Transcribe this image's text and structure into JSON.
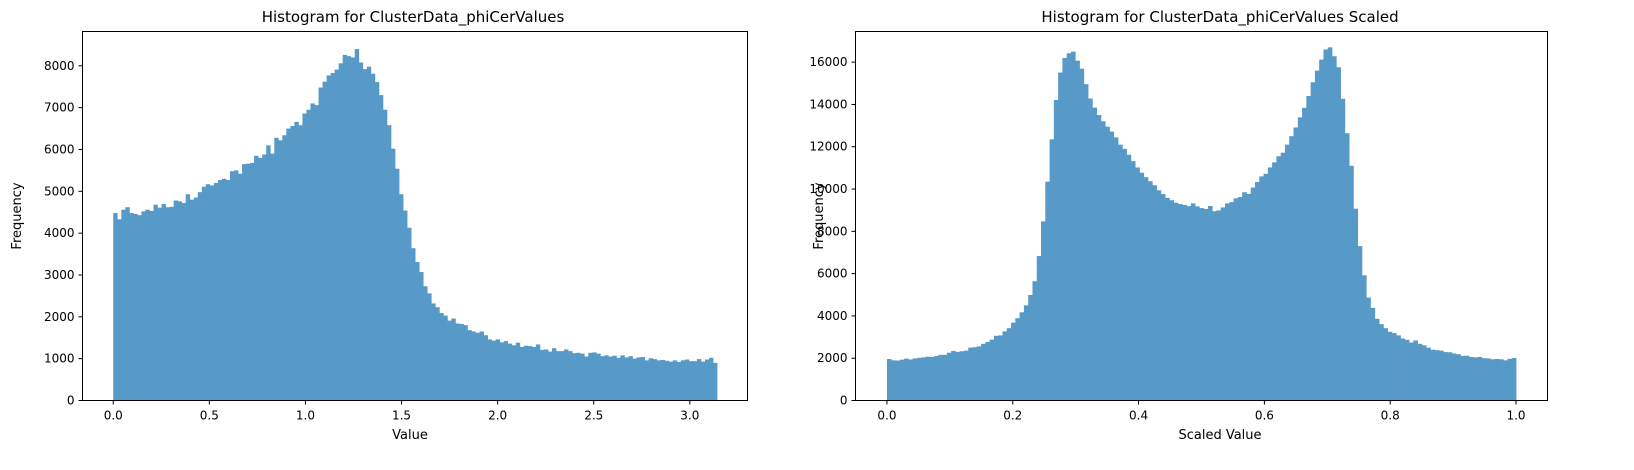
{
  "chart_data": [
    {
      "type": "bar",
      "title": "Histogram for ClusterData_phiCerValues",
      "xlabel": "Value",
      "ylabel": "Frequency",
      "xlim": [
        -0.16,
        3.3
      ],
      "ylim": [
        0,
        8820
      ],
      "xticks": [
        0.0,
        0.5,
        1.0,
        1.5,
        2.0,
        2.5,
        3.0
      ],
      "xtick_labels": [
        "0.0",
        "0.5",
        "1.0",
        "1.5",
        "2.0",
        "2.5",
        "3.0"
      ],
      "yticks": [
        0,
        1000,
        2000,
        3000,
        4000,
        5000,
        6000,
        7000,
        8000
      ],
      "ytick_labels": [
        "0",
        "1000",
        "2000",
        "3000",
        "4000",
        "5000",
        "6000",
        "7000",
        "8000"
      ],
      "bar_color": "#5799c7",
      "bin_start": 0.0,
      "bin_end": 3.1416,
      "values": [
        4480,
        4330,
        4560,
        4620,
        4480,
        4460,
        4430,
        4520,
        4560,
        4530,
        4680,
        4610,
        4700,
        4620,
        4630,
        4780,
        4760,
        4720,
        4930,
        4800,
        4850,
        4980,
        5110,
        5170,
        5140,
        5200,
        5270,
        5300,
        5270,
        5480,
        5500,
        5420,
        5650,
        5660,
        5680,
        5850,
        5800,
        5880,
        6100,
        5900,
        6280,
        6220,
        6340,
        6500,
        6560,
        6660,
        6580,
        6860,
        6950,
        7100,
        7060,
        7480,
        7620,
        7770,
        7830,
        7910,
        8060,
        8260,
        8230,
        8200,
        8400,
        8080,
        7920,
        7980,
        7810,
        7610,
        7300,
        6950,
        6580,
        6020,
        5540,
        4930,
        4540,
        4130,
        3640,
        3310,
        3070,
        2730,
        2560,
        2320,
        2230,
        2090,
        2030,
        1910,
        1960,
        1840,
        1830,
        1800,
        1680,
        1650,
        1620,
        1650,
        1560,
        1460,
        1430,
        1460,
        1390,
        1420,
        1360,
        1320,
        1380,
        1280,
        1310,
        1300,
        1280,
        1340,
        1210,
        1220,
        1170,
        1250,
        1180,
        1180,
        1220,
        1180,
        1130,
        1140,
        1120,
        1050,
        1140,
        1150,
        1120,
        1060,
        1080,
        1050,
        1070,
        1020,
        1080,
        1030,
        1060,
        1000,
        1030,
        1040,
        960,
        1010,
        990,
        960,
        970,
        950,
        930,
        960,
        920,
        960,
        980,
        940,
        940,
        990,
        930,
        980,
        1020,
        900
      ]
    },
    {
      "type": "bar",
      "title": "Histogram for ClusterData_phiCerValues Scaled",
      "xlabel": "Scaled Value",
      "ylabel": "Frequency",
      "xlim": [
        -0.05,
        1.05
      ],
      "ylim": [
        0,
        17450
      ],
      "xticks": [
        0.0,
        0.2,
        0.4,
        0.6,
        0.8,
        1.0
      ],
      "xtick_labels": [
        "0.0",
        "0.2",
        "0.4",
        "0.6",
        "0.8",
        "1.0"
      ],
      "yticks": [
        0,
        2000,
        4000,
        6000,
        8000,
        10000,
        12000,
        14000,
        16000
      ],
      "ytick_labels": [
        "0",
        "2000",
        "4000",
        "6000",
        "8000",
        "10000",
        "12000",
        "14000",
        "16000"
      ],
      "bar_color": "#5799c7",
      "bin_start": 0.0,
      "bin_end": 1.0,
      "values": [
        1960,
        1900,
        1890,
        1930,
        1980,
        1940,
        1990,
        2020,
        2040,
        2070,
        2060,
        2100,
        2160,
        2160,
        2260,
        2340,
        2300,
        2330,
        2360,
        2500,
        2520,
        2560,
        2680,
        2770,
        2880,
        3060,
        3080,
        3270,
        3420,
        3680,
        3890,
        4170,
        4500,
        4990,
        5640,
        6830,
        8470,
        10350,
        12350,
        14210,
        15510,
        16200,
        16420,
        16500,
        16070,
        15690,
        14960,
        14280,
        13850,
        13500,
        13200,
        12950,
        12720,
        12440,
        12100,
        11900,
        11620,
        11320,
        11020,
        10770,
        10560,
        10370,
        10180,
        9940,
        9760,
        9580,
        9470,
        9350,
        9290,
        9250,
        9190,
        9320,
        9180,
        9100,
        9060,
        9200,
        8950,
        8990,
        9130,
        9320,
        9380,
        9560,
        9620,
        9850,
        9770,
        10070,
        10330,
        10600,
        10720,
        11020,
        11260,
        11550,
        11720,
        12100,
        12500,
        12910,
        13390,
        13840,
        14400,
        15050,
        15600,
        16120,
        16600,
        16700,
        16280,
        15760,
        14270,
        12640,
        11100,
        9070,
        7300,
        5920,
        4870,
        4380,
        3860,
        3610,
        3420,
        3250,
        3190,
        3080,
        2930,
        2870,
        2740,
        2840,
        2680,
        2610,
        2500,
        2400,
        2380,
        2360,
        2290,
        2280,
        2220,
        2190,
        2110,
        2120,
        2060,
        2040,
        2060,
        2000,
        1990,
        1950,
        1960,
        1950,
        1900,
        1970,
        2010
      ]
    }
  ]
}
